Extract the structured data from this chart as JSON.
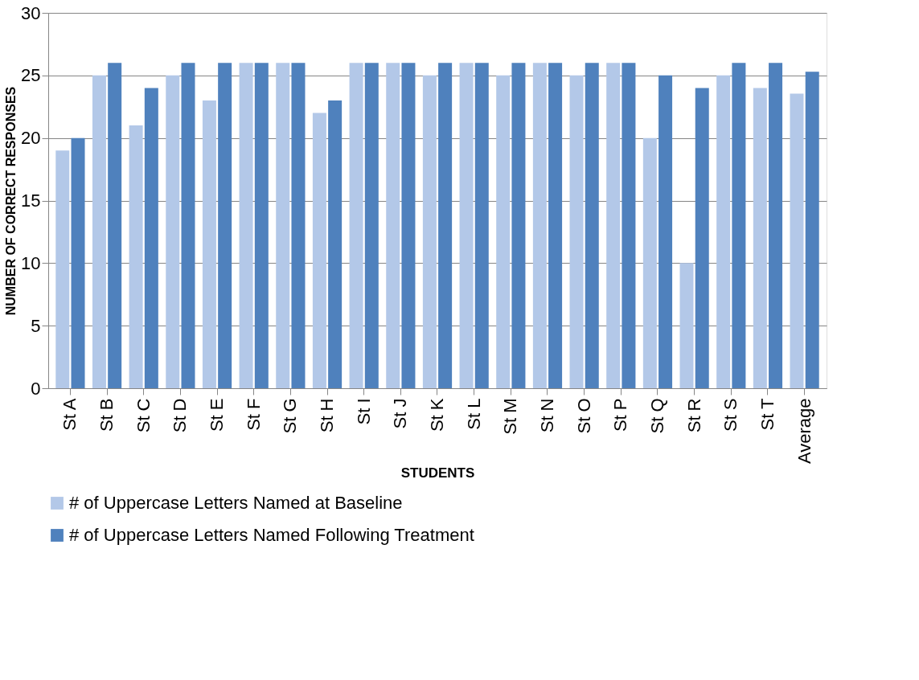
{
  "chart_data": {
    "type": "bar",
    "xlabel": "STUDENTS",
    "ylabel": "NUMBER OF CORRECT RESPONSES",
    "categories": [
      "St A",
      "St B",
      "St C",
      "St D",
      "St E",
      "St F",
      "St G",
      "St H",
      "St I",
      "St J",
      "St K",
      "St L",
      "St M",
      "St N",
      "St O",
      "St P",
      "St Q",
      "St R",
      "St S",
      "St T",
      "Average"
    ],
    "series": [
      {
        "name": "# of Uppercase Letters Named at Baseline",
        "color": "#b3c8e8",
        "values": [
          19,
          25,
          21,
          25,
          23,
          26,
          26,
          22,
          26,
          26,
          25,
          26,
          25,
          26,
          25,
          26,
          20,
          10,
          25,
          24,
          23.55
        ]
      },
      {
        "name": "# of Uppercase Letters Named Following Treatment",
        "color": "#4f81bd",
        "values": [
          20,
          26,
          24,
          26,
          26,
          26,
          26,
          23,
          26,
          26,
          26,
          26,
          26,
          26,
          26,
          26,
          25,
          24,
          26,
          26,
          25.3
        ]
      }
    ],
    "ylim": [
      0,
      30
    ],
    "yticks": [
      0,
      5,
      10,
      15,
      20,
      25,
      30
    ],
    "grid": "y",
    "legend": "bottom"
  }
}
